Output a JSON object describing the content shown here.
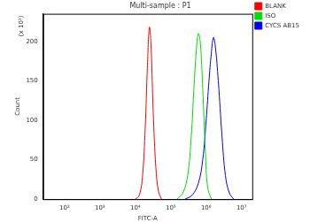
{
  "chart_data": {
    "type": "line",
    "title": "Multi-sample : P1",
    "x_label": "FITC-A",
    "y_label": "Count",
    "annotations": [
      "(x 10¹)"
    ],
    "log": "x",
    "grid": false,
    "legend": "top-right",
    "xlim": [
      25,
      20000000
    ],
    "xticks": [
      {
        "value": 100,
        "label": "10²"
      },
      {
        "value": 1000,
        "label": "10³"
      },
      {
        "value": 10000,
        "label": "10⁴"
      },
      {
        "value": 100000,
        "label": "10⁵"
      },
      {
        "value": 1000000,
        "label": "10⁶"
      },
      {
        "value": 10000000,
        "label": "10⁷"
      }
    ],
    "ylim": [
      0,
      235
    ],
    "yticks": [
      0,
      50,
      100,
      150,
      200
    ],
    "series": [
      {
        "name": "BLANK",
        "color": "#ff0000",
        "x": [
          10000,
          13000,
          16000,
          19000,
          22000,
          25000,
          28000,
          32000,
          38000,
          45000,
          55000
        ],
        "values": [
          0,
          5,
          30,
          90,
          170,
          218,
          190,
          110,
          40,
          10,
          0
        ]
      },
      {
        "name": "ISO",
        "color": "#00dd00",
        "x": [
          150000,
          220000,
          300000,
          380000,
          450000,
          530000,
          600000,
          680000,
          800000,
          950000,
          1100000,
          1400000
        ],
        "values": [
          0,
          8,
          30,
          80,
          140,
          190,
          210,
          200,
          140,
          60,
          15,
          0
        ]
      },
      {
        "name": "CYCS AB15",
        "color": "#0000ff",
        "x": [
          250000,
          400000,
          600000,
          800000,
          1000000,
          1200000,
          1400000,
          1600000,
          1800000,
          2200000,
          2800000,
          3500000,
          4500000,
          6000000
        ],
        "values": [
          0,
          5,
          20,
          50,
          100,
          150,
          185,
          205,
          195,
          150,
          80,
          30,
          8,
          0
        ]
      }
    ]
  }
}
